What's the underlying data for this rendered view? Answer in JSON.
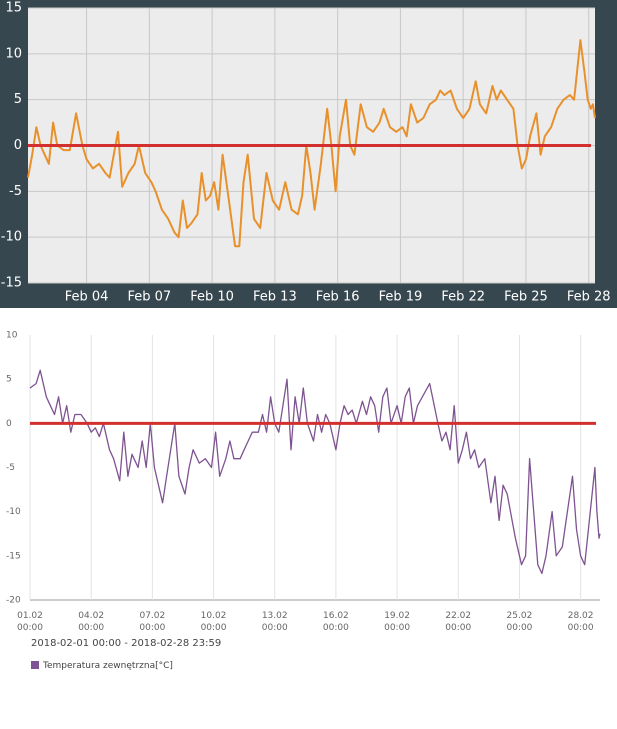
{
  "chart_data": [
    {
      "type": "line",
      "color": "#e8912c",
      "reference_line": 0,
      "reference_color": "#d32f2f",
      "grid": "both",
      "xlim": [
        1.2,
        28.3
      ],
      "ylim": [
        -15,
        15
      ],
      "yticks": [
        -15,
        -10,
        -5,
        0,
        5,
        10,
        15
      ],
      "xticks": [
        {
          "value": 4,
          "label": "Feb 04"
        },
        {
          "value": 7,
          "label": "Feb 07"
        },
        {
          "value": 10,
          "label": "Feb 10"
        },
        {
          "value": 13,
          "label": "Feb 13"
        },
        {
          "value": 16,
          "label": "Feb 16"
        },
        {
          "value": 19,
          "label": "Feb 19"
        },
        {
          "value": 22,
          "label": "Feb 22"
        },
        {
          "value": 25,
          "label": "Feb 25"
        },
        {
          "value": 28,
          "label": "Feb 28"
        }
      ],
      "x": [
        1.2,
        1.4,
        1.6,
        1.8,
        2.0,
        2.2,
        2.4,
        2.6,
        2.9,
        3.2,
        3.5,
        3.8,
        4.0,
        4.3,
        4.6,
        4.9,
        5.1,
        5.5,
        5.7,
        6.0,
        6.3,
        6.5,
        6.8,
        7.1,
        7.3,
        7.6,
        7.9,
        8.2,
        8.4,
        8.6,
        8.8,
        9.0,
        9.3,
        9.5,
        9.7,
        9.9,
        10.1,
        10.3,
        10.5,
        10.8,
        11.1,
        11.3,
        11.5,
        11.7,
        12.0,
        12.3,
        12.6,
        12.9,
        13.2,
        13.5,
        13.8,
        14.1,
        14.3,
        14.5,
        14.7,
        14.9,
        15.2,
        15.5,
        15.7,
        15.9,
        16.1,
        16.4,
        16.6,
        16.8,
        17.1,
        17.4,
        17.7,
        18.0,
        18.2,
        18.5,
        18.8,
        19.1,
        19.3,
        19.5,
        19.8,
        20.1,
        20.4,
        20.7,
        20.9,
        21.1,
        21.4,
        21.7,
        22.0,
        22.3,
        22.6,
        22.8,
        23.1,
        23.4,
        23.6,
        23.8,
        24.1,
        24.4,
        24.6,
        24.8,
        25.0,
        25.2,
        25.5,
        25.7,
        25.9,
        26.2,
        26.5,
        26.8,
        27.1,
        27.3,
        27.6,
        27.8,
        27.95,
        28.1,
        28.2,
        28.3
      ],
      "values": [
        -3.5,
        -1,
        2,
        0,
        -1,
        -2,
        2.5,
        0,
        -0.5,
        -0.5,
        3.5,
        0,
        -1.5,
        -2.5,
        -2,
        -3,
        -3.5,
        1.5,
        -4.5,
        -3,
        -2,
        0,
        -3,
        -4,
        -5,
        -7,
        -8,
        -9.5,
        -10,
        -6,
        -9,
        -8.5,
        -7.5,
        -3,
        -6,
        -5.5,
        -4,
        -7,
        -1,
        -6,
        -11,
        -11,
        -4,
        -1,
        -8,
        -9,
        -3,
        -6,
        -7,
        -4,
        -7,
        -7.5,
        -5.5,
        0,
        -3,
        -7,
        -2,
        4,
        0,
        -5,
        1,
        5,
        0,
        -1,
        4.5,
        2,
        1.5,
        2.5,
        4,
        2,
        1.5,
        2,
        1,
        4.5,
        2.5,
        3,
        4.5,
        5,
        6,
        5.5,
        6,
        4,
        3,
        4,
        7,
        4.5,
        3.5,
        6.5,
        5,
        6,
        5,
        4,
        0,
        -2.5,
        -1.5,
        1,
        3.5,
        -1,
        1,
        2,
        4,
        5,
        5.5,
        5,
        11.5,
        8,
        5,
        4,
        4.5,
        3
      ]
    },
    {
      "type": "line",
      "reference_line": 0,
      "reference_color": "#d32f2f",
      "grid": "x",
      "date_range": "2018-02-01 00:00 - 2018-02-28 23:59",
      "xlim": [
        1,
        28.95
      ],
      "ylim": [
        -20,
        10
      ],
      "yticks": [
        -20,
        -15,
        -10,
        -5,
        0,
        5,
        10
      ],
      "xticks": [
        {
          "value": 1,
          "label": "01.02 00:00"
        },
        {
          "value": 4,
          "label": "04.02 00:00"
        },
        {
          "value": 7,
          "label": "07.02 00:00"
        },
        {
          "value": 10,
          "label": "10.02 00:00"
        },
        {
          "value": 13,
          "label": "13.02 00:00"
        },
        {
          "value": 16,
          "label": "16.02 00:00"
        },
        {
          "value": 19,
          "label": "19.02 00:00"
        },
        {
          "value": 22,
          "label": "22.02 00:00"
        },
        {
          "value": 25,
          "label": "25.02 00:00"
        },
        {
          "value": 28,
          "label": "28.02 00:00"
        }
      ],
      "x": [
        1.0,
        1.3,
        1.5,
        1.8,
        2.0,
        2.2,
        2.4,
        2.6,
        2.8,
        3.0,
        3.2,
        3.5,
        3.8,
        4.0,
        4.2,
        4.4,
        4.6,
        4.9,
        5.1,
        5.4,
        5.6,
        5.8,
        6.0,
        6.3,
        6.5,
        6.7,
        6.9,
        7.1,
        7.3,
        7.5,
        7.7,
        7.9,
        8.1,
        8.3,
        8.6,
        8.8,
        9.0,
        9.3,
        9.6,
        9.9,
        10.1,
        10.3,
        10.6,
        10.8,
        11.0,
        11.3,
        11.5,
        11.7,
        11.9,
        12.2,
        12.4,
        12.6,
        12.8,
        13.0,
        13.2,
        13.4,
        13.6,
        13.8,
        14.0,
        14.2,
        14.4,
        14.6,
        14.9,
        15.1,
        15.3,
        15.5,
        15.7,
        16.0,
        16.2,
        16.4,
        16.6,
        16.8,
        17.0,
        17.3,
        17.5,
        17.7,
        17.9,
        18.1,
        18.3,
        18.5,
        18.7,
        19.0,
        19.2,
        19.4,
        19.6,
        19.8,
        20.0,
        20.6,
        21.0,
        21.2,
        21.4,
        21.6,
        21.8,
        22.0,
        22.2,
        22.4,
        22.6,
        22.8,
        23.0,
        23.3,
        23.6,
        23.8,
        24.0,
        24.2,
        24.4,
        24.8,
        25.1,
        25.3,
        25.5,
        25.7,
        25.9,
        26.1,
        26.3,
        26.6,
        26.8,
        27.1,
        27.6,
        27.8,
        28.0,
        28.2,
        28.7,
        28.8,
        28.9,
        28.95
      ],
      "series": [
        {
          "name": "Temperatura zewnętrzna[°C]",
          "color": "#7e5391",
          "values": [
            4,
            4.5,
            6,
            3,
            2,
            1,
            3,
            0,
            2,
            -1,
            1,
            1,
            0,
            -1,
            -0.5,
            -1.5,
            0,
            -3,
            -4,
            -6.5,
            -1,
            -6,
            -3.5,
            -5,
            -2,
            -5,
            0,
            -5,
            -7,
            -9,
            -6,
            -3,
            0,
            -6,
            -8,
            -5,
            -3,
            -4.5,
            -4,
            -5,
            -1,
            -6,
            -4,
            -2,
            -4,
            -4,
            -3,
            -2,
            -1,
            -1,
            1,
            -1,
            3,
            0,
            -1,
            2,
            5,
            -3,
            3,
            0,
            4,
            0,
            -2,
            1,
            -1,
            1,
            0,
            -3,
            0,
            2,
            1,
            1.5,
            0,
            2.5,
            1,
            3,
            2,
            -1,
            3,
            4,
            0,
            2,
            0,
            3,
            4,
            0,
            2,
            4.5,
            0,
            -2,
            -1,
            -3,
            2,
            -4.5,
            -3,
            -1,
            -4,
            -3,
            -5,
            -4,
            -9,
            -6,
            -11,
            -7,
            -8,
            -13,
            -16,
            -15,
            -4,
            -10,
            -16,
            -17,
            -15,
            -10,
            -15,
            -14,
            -6,
            -12,
            -15,
            -16,
            -5,
            -10,
            -13,
            -12.5
          ]
        }
      ]
    }
  ]
}
